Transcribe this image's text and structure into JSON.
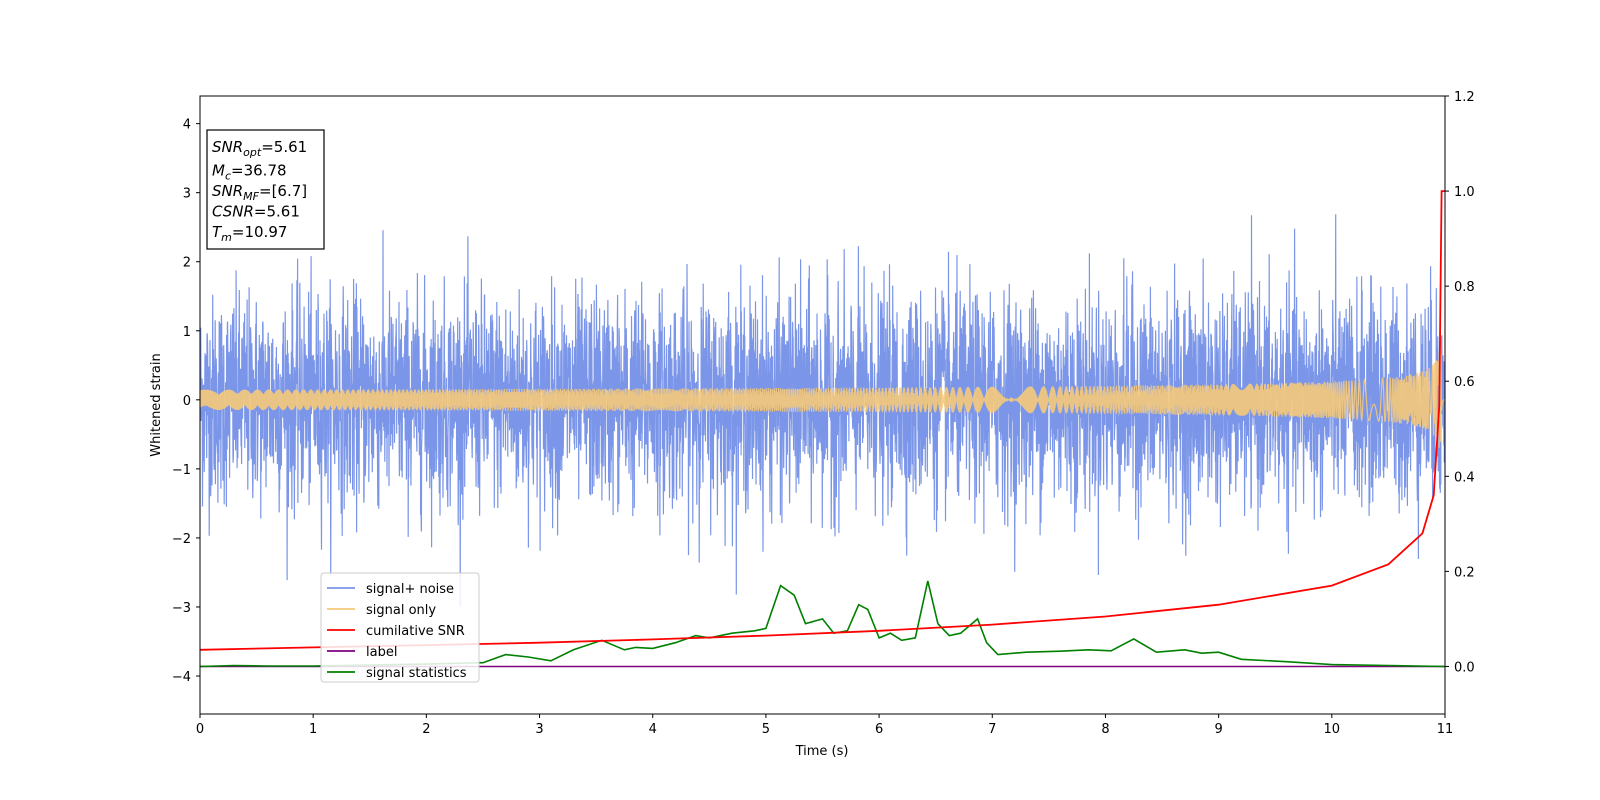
{
  "chart_data": {
    "type": "line",
    "title": "",
    "xlabel": "Time (s)",
    "ylabel": "Whitened strain",
    "xlim": [
      0,
      11
    ],
    "ylim_left": [
      -4.55,
      4.4
    ],
    "ylim_right": [
      -0.1,
      1.2
    ],
    "xticks": [
      "0",
      "1",
      "2",
      "3",
      "4",
      "5",
      "6",
      "7",
      "8",
      "9",
      "10",
      "11"
    ],
    "yticks_left": [
      "−4",
      "−3",
      "−2",
      "−1",
      "0",
      "1",
      "2",
      "3",
      "4"
    ],
    "yticks_right": [
      "0.0",
      "0.2",
      "0.4",
      "0.6",
      "0.8",
      "1.0",
      "1.2"
    ],
    "grid": false,
    "legend": {
      "placement": "lower-left",
      "entries": [
        {
          "label": "signal+ noise",
          "color": "#7b96e8"
        },
        {
          "label": "signal only",
          "color": "#f5c97a"
        },
        {
          "label": "cumilative SNR",
          "color": "#ff0000"
        },
        {
          "label": "label",
          "color": "#800080"
        },
        {
          "label": "signal statistics",
          "color": "#008000"
        }
      ]
    },
    "stats_box": [
      {
        "sym": "SNR",
        "sub": "opt",
        "rest": "=5.61"
      },
      {
        "sym": "M",
        "sub": "c",
        "rest": "=36.78"
      },
      {
        "sym": "SNR",
        "sub": "MF",
        "rest": "=[6.7]"
      },
      {
        "sym": "CSNR",
        "sub": "",
        "rest": "=5.61"
      },
      {
        "sym": "T",
        "sub": "m",
        "rest": "=10.97"
      }
    ],
    "series": [
      {
        "name": "signal+ noise",
        "axis": "left",
        "color": "#7b96e8",
        "note_values": "dense noise roughly within ±2.5 strain (occasional peaks to ±3) sampled across 0–11 s",
        "amplitude_typical": 1.5,
        "amplitude_peak": 3.0
      },
      {
        "name": "signal only",
        "axis": "left",
        "color": "#f5c97a",
        "chirp_end_amplitude": 0.6,
        "merger_time": 10.97
      },
      {
        "name": "cumilative SNR",
        "axis": "right",
        "color": "#ff0000",
        "x": [
          0,
          1,
          2,
          3,
          4,
          5,
          6,
          7,
          8,
          9,
          10,
          10.5,
          10.8,
          10.9,
          10.95,
          10.97,
          11
        ],
        "y": [
          0.035,
          0.04,
          0.045,
          0.05,
          0.057,
          0.065,
          0.075,
          0.088,
          0.105,
          0.13,
          0.17,
          0.215,
          0.28,
          0.36,
          0.55,
          1.0,
          1.0
        ]
      },
      {
        "name": "label",
        "axis": "right",
        "color": "#800080",
        "x": [
          0,
          11
        ],
        "y": [
          0.0,
          0.0
        ]
      },
      {
        "name": "signal statistics",
        "axis": "right",
        "color": "#008000",
        "x": [
          0,
          0.3,
          0.6,
          1.0,
          1.5,
          2.0,
          2.5,
          2.7,
          2.9,
          3.1,
          3.3,
          3.55,
          3.75,
          3.85,
          4.0,
          4.2,
          4.38,
          4.5,
          4.7,
          4.9,
          5.0,
          5.13,
          5.25,
          5.35,
          5.5,
          5.6,
          5.72,
          5.82,
          5.9,
          6.0,
          6.1,
          6.2,
          6.32,
          6.43,
          6.52,
          6.62,
          6.72,
          6.87,
          6.95,
          7.05,
          7.3,
          7.6,
          7.85,
          8.05,
          8.25,
          8.45,
          8.7,
          8.85,
          9.0,
          9.2,
          9.6,
          10.0,
          10.5,
          11.0
        ],
        "y": [
          0.0,
          0.002,
          0.001,
          0.001,
          0.003,
          0.005,
          0.008,
          0.025,
          0.02,
          0.012,
          0.035,
          0.055,
          0.035,
          0.04,
          0.038,
          0.05,
          0.065,
          0.06,
          0.07,
          0.075,
          0.08,
          0.17,
          0.15,
          0.09,
          0.1,
          0.07,
          0.075,
          0.13,
          0.12,
          0.06,
          0.07,
          0.055,
          0.06,
          0.18,
          0.09,
          0.065,
          0.07,
          0.1,
          0.05,
          0.025,
          0.03,
          0.032,
          0.035,
          0.033,
          0.058,
          0.03,
          0.035,
          0.028,
          0.03,
          0.015,
          0.01,
          0.004,
          0.002,
          0.0
        ]
      }
    ]
  }
}
